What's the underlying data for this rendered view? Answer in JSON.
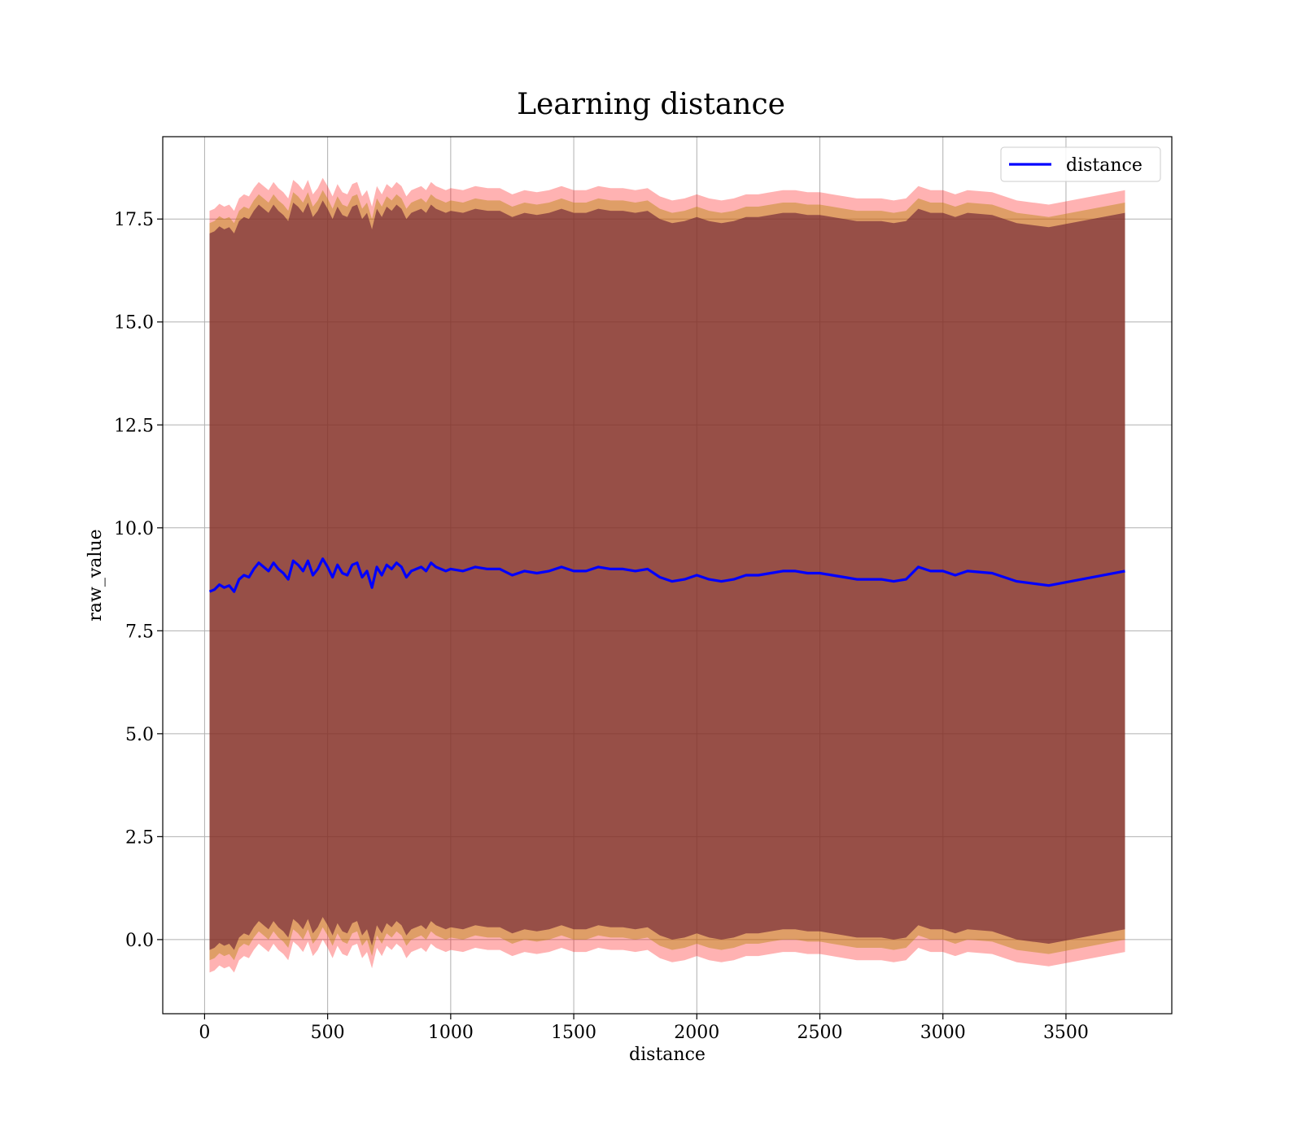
{
  "chart_data": {
    "type": "line",
    "title": "Learning distance",
    "xlabel": "distance",
    "ylabel": "raw_value",
    "xlim": [
      -170,
      3930
    ],
    "ylim": [
      -1.8,
      19.5
    ],
    "x_ticks": [
      0,
      500,
      1000,
      1500,
      2000,
      2500,
      3000,
      3500
    ],
    "x_tick_labels": [
      "0",
      "500",
      "1000",
      "1500",
      "2000",
      "2500",
      "3000",
      "3500"
    ],
    "y_ticks": [
      0.0,
      2.5,
      5.0,
      7.5,
      10.0,
      12.5,
      15.0,
      17.5
    ],
    "y_tick_labels": [
      "0.0",
      "2.5",
      "5.0",
      "7.5",
      "10.0",
      "12.5",
      "15.0",
      "17.5"
    ],
    "grid": true,
    "legend": {
      "position": "top-right",
      "entries": [
        "distance"
      ]
    },
    "colors": {
      "line": "#0000ff",
      "outer_band": "#ff0000",
      "middle_band": "#b8860b",
      "inner_band": "#6b1e33"
    },
    "series": [
      {
        "name": "distance",
        "x": [
          20,
          40,
          60,
          80,
          100,
          120,
          140,
          160,
          180,
          200,
          220,
          240,
          260,
          280,
          300,
          320,
          340,
          360,
          380,
          400,
          420,
          440,
          460,
          480,
          500,
          520,
          540,
          560,
          580,
          600,
          620,
          640,
          660,
          680,
          700,
          720,
          740,
          760,
          780,
          800,
          820,
          840,
          860,
          880,
          900,
          920,
          940,
          960,
          980,
          1000,
          1050,
          1100,
          1150,
          1200,
          1250,
          1300,
          1350,
          1400,
          1450,
          1500,
          1550,
          1600,
          1650,
          1700,
          1750,
          1800,
          1850,
          1900,
          1950,
          2000,
          2050,
          2100,
          2150,
          2200,
          2250,
          2300,
          2350,
          2400,
          2450,
          2500,
          2550,
          2600,
          2650,
          2700,
          2750,
          2800,
          2850,
          2900,
          2950,
          3000,
          3050,
          3100,
          3200,
          3300,
          3430,
          3740
        ],
        "values": [
          8.45,
          8.5,
          8.62,
          8.55,
          8.6,
          8.45,
          8.75,
          8.85,
          8.8,
          9.0,
          9.15,
          9.05,
          8.95,
          9.15,
          9.0,
          8.9,
          8.75,
          9.2,
          9.1,
          8.95,
          9.2,
          8.85,
          9.0,
          9.25,
          9.05,
          8.8,
          9.1,
          8.9,
          8.85,
          9.1,
          9.15,
          8.8,
          8.95,
          8.55,
          9.05,
          8.85,
          9.1,
          9.0,
          9.15,
          9.05,
          8.8,
          8.95,
          9.0,
          9.05,
          8.95,
          9.15,
          9.05,
          9.0,
          8.95,
          9.0,
          8.95,
          9.05,
          9.0,
          9.0,
          8.85,
          8.95,
          8.9,
          8.95,
          9.05,
          8.95,
          8.95,
          9.05,
          9.0,
          9.0,
          8.95,
          9.0,
          8.8,
          8.7,
          8.75,
          8.85,
          8.75,
          8.7,
          8.75,
          8.85,
          8.85,
          8.9,
          8.95,
          8.95,
          8.9,
          8.9,
          8.85,
          8.8,
          8.75,
          8.75,
          8.75,
          8.7,
          8.75,
          9.05,
          8.95,
          8.95,
          8.85,
          8.95,
          8.9,
          8.7,
          8.6,
          8.95
        ]
      }
    ],
    "bands": [
      {
        "name": "outer",
        "half_width": 9.25
      },
      {
        "name": "middle",
        "half_width": 8.95
      },
      {
        "name": "inner",
        "half_width": 8.7
      }
    ]
  }
}
